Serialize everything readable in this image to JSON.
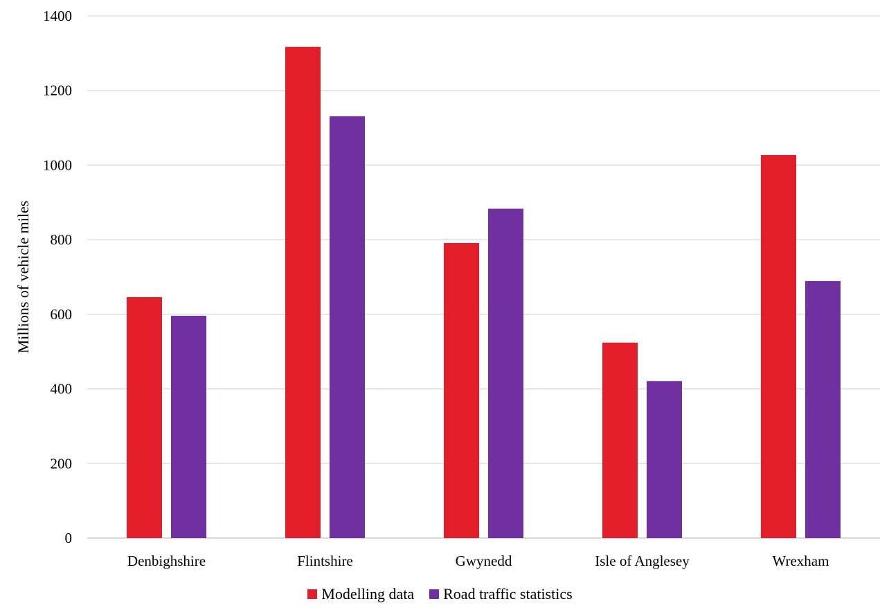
{
  "chart_data": {
    "type": "bar",
    "categories": [
      "Denbighshire",
      "Flintshire",
      "Gwynedd",
      "Isle of Anglesey",
      "Wrexham"
    ],
    "series": [
      {
        "name": "Modelling data",
        "values": [
          646,
          1317,
          791,
          524,
          1027
        ],
        "color": "#e31e2b"
      },
      {
        "name": "Road traffic statistics",
        "values": [
          596,
          1131,
          883,
          421,
          689
        ],
        "color": "#7030a0"
      }
    ],
    "ylabel": "Millions of vehicle miles",
    "xlabel": "",
    "ylim": [
      0,
      1400
    ],
    "yticks": [
      0,
      200,
      400,
      600,
      800,
      1000,
      1200,
      1400
    ],
    "grid": true,
    "legend_position": "bottom"
  }
}
